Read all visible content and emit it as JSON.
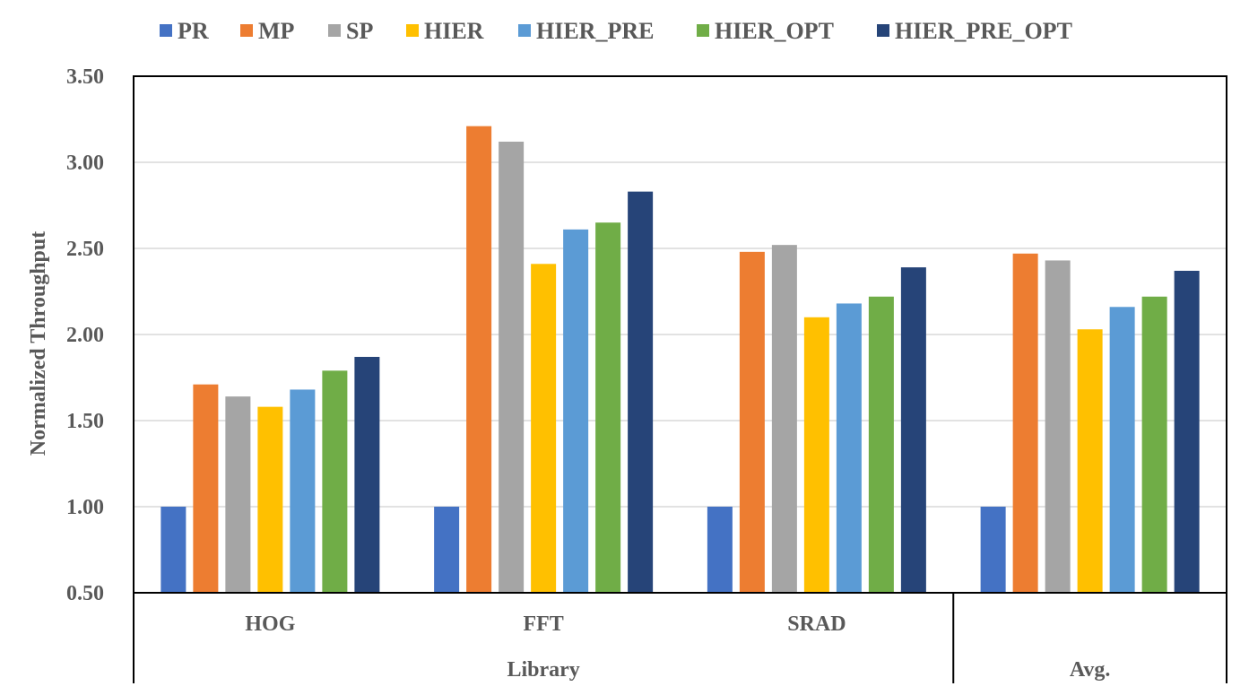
{
  "chart_data": {
    "type": "bar",
    "title": "",
    "xlabel": "",
    "ylabel": "Normalized Throughput",
    "ylim": [
      0.5,
      3.5
    ],
    "yticks": [
      "0.50",
      "1.00",
      "1.50",
      "2.00",
      "2.50",
      "3.00",
      "3.50"
    ],
    "grid": true,
    "legend_position": "top",
    "categories": [
      "HOG",
      "FFT",
      "SRAD",
      ""
    ],
    "groups": [
      {
        "label": "Library",
        "span": [
          "HOG",
          "FFT",
          "SRAD"
        ]
      },
      {
        "label": "Avg.",
        "span": [
          ""
        ]
      }
    ],
    "series": [
      {
        "name": "PR",
        "color": "#4472C4",
        "values": [
          1.0,
          1.0,
          1.0,
          1.0
        ]
      },
      {
        "name": "MP",
        "color": "#ED7D31",
        "values": [
          1.71,
          3.21,
          2.48,
          2.47
        ]
      },
      {
        "name": "SP",
        "color": "#A5A5A5",
        "values": [
          1.64,
          3.12,
          2.52,
          2.43
        ]
      },
      {
        "name": "HIER",
        "color": "#FFC000",
        "values": [
          1.58,
          2.41,
          2.1,
          2.03
        ]
      },
      {
        "name": "HIER_PRE",
        "color": "#5B9BD5",
        "values": [
          1.68,
          2.61,
          2.18,
          2.16
        ]
      },
      {
        "name": "HIER_OPT",
        "color": "#70AD47",
        "values": [
          1.79,
          2.65,
          2.22,
          2.22
        ]
      },
      {
        "name": "HIER_PRE_OPT",
        "color": "#264478",
        "values": [
          1.87,
          2.83,
          2.39,
          2.37
        ]
      }
    ]
  }
}
